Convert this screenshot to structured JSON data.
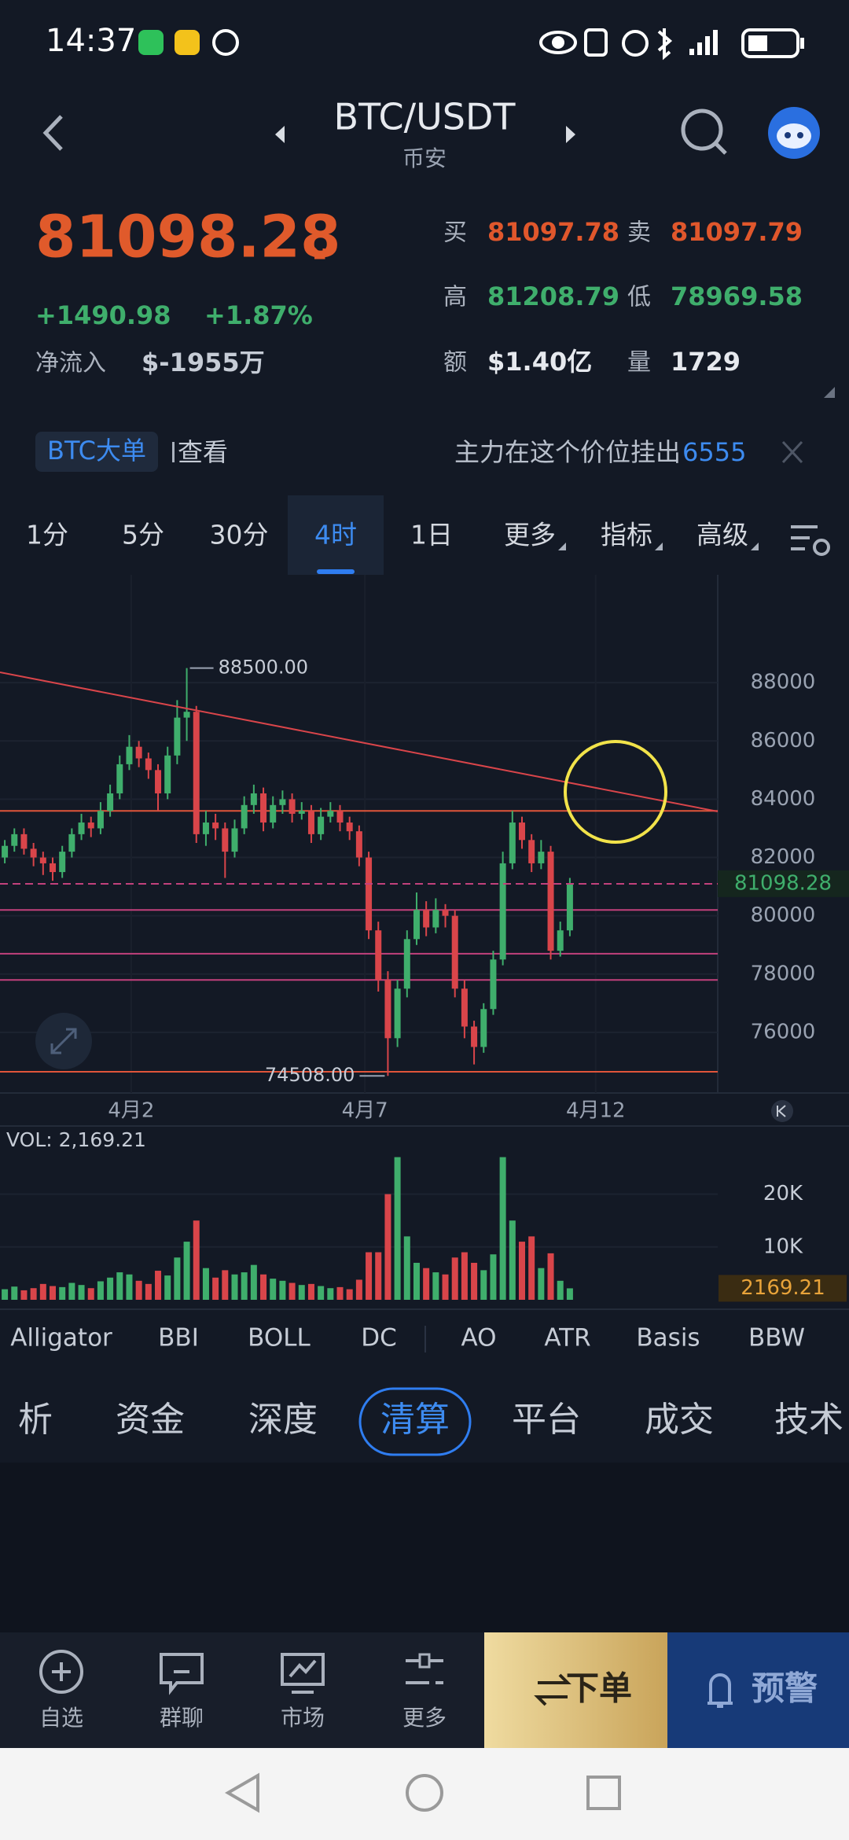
{
  "status_bar": {
    "time": "14:37"
  },
  "header": {
    "title": "BTC/USDT",
    "subtitle": "币安"
  },
  "ticker": {
    "price": "81098.28",
    "change": "+1490.98",
    "change_pct": "+1.87%",
    "net_inflow_label": "净流入",
    "net_inflow": "$-1955万",
    "stats": [
      {
        "label": "买",
        "value": "81097.78",
        "color": "#e0572c"
      },
      {
        "label": "卖",
        "value": "81097.79",
        "color": "#e0572c"
      },
      {
        "label": "高",
        "value": "81208.79",
        "color": "#3fae6c"
      },
      {
        "label": "低",
        "value": "78969.58",
        "color": "#3fae6c"
      },
      {
        "label": "额",
        "value": "$1.40亿",
        "color": "#e6e9ee"
      },
      {
        "label": "量",
        "value": "1729",
        "color": "#e6e9ee"
      }
    ]
  },
  "banner": {
    "tag": "BTC大单",
    "action": "查看",
    "text": "主力在这个价位挂出",
    "count": "6555"
  },
  "timeframes": [
    "1分",
    "5分",
    "30分",
    "4时",
    "1日",
    "更多",
    "指标",
    "高级"
  ],
  "active_timeframe": 3,
  "chart": {
    "type": "candlestick",
    "up_color": "#3fae6c",
    "down_color": "#d9454a",
    "ylim": [
      73920,
      91700
    ],
    "yticks": [
      76000,
      78000,
      80000,
      82000,
      84000,
      86000,
      88000
    ],
    "xticks": [
      {
        "value": 13.2,
        "label": "4月2"
      },
      {
        "value": 37.6,
        "label": "4月7"
      },
      {
        "value": 61.7,
        "label": "4月12"
      }
    ],
    "high_label": {
      "value": 88500,
      "label": "88500.00"
    },
    "low_label": {
      "value": 74508,
      "label": "74508.00"
    },
    "levels": [
      {
        "value": 83600,
        "color": "#e0553a"
      },
      {
        "value": 80200,
        "color": "#c2417c"
      },
      {
        "value": 78700,
        "color": "#c2417c"
      },
      {
        "value": 77800,
        "color": "#c2417c"
      },
      {
        "value": 74650,
        "color": "#e0553a"
      }
    ],
    "candles": [
      [
        82000,
        82600,
        81800,
        82400
      ],
      [
        82400,
        83000,
        82200,
        82800
      ],
      [
        82800,
        83000,
        82100,
        82300
      ],
      [
        82300,
        82500,
        81700,
        82000
      ],
      [
        82000,
        82200,
        81400,
        81800
      ],
      [
        81800,
        82000,
        81200,
        81500
      ],
      [
        81500,
        82400,
        81300,
        82200
      ],
      [
        82200,
        83000,
        82000,
        82800
      ],
      [
        82800,
        83500,
        82600,
        83200
      ],
      [
        83200,
        83400,
        82700,
        83000
      ],
      [
        83000,
        83900,
        82800,
        83600
      ],
      [
        83600,
        84500,
        83400,
        84200
      ],
      [
        84200,
        85500,
        84000,
        85200
      ],
      [
        85200,
        86200,
        85000,
        85800
      ],
      [
        85800,
        86000,
        85100,
        85400
      ],
      [
        85400,
        85600,
        84700,
        85000
      ],
      [
        85000,
        85200,
        83600,
        84200
      ],
      [
        84200,
        85800,
        84000,
        85500
      ],
      [
        85500,
        87400,
        85200,
        86800
      ],
      [
        86800,
        88500,
        86000,
        87000
      ],
      [
        87000,
        87200,
        82500,
        82800
      ],
      [
        82800,
        83600,
        82400,
        83200
      ],
      [
        83200,
        83500,
        82600,
        83000
      ],
      [
        83000,
        83200,
        81300,
        82200
      ],
      [
        82200,
        83300,
        82000,
        83000
      ],
      [
        83000,
        84100,
        82800,
        83800
      ],
      [
        83800,
        84500,
        83500,
        84200
      ],
      [
        84200,
        84400,
        82900,
        83200
      ],
      [
        83200,
        84100,
        83000,
        83800
      ],
      [
        83800,
        84300,
        83500,
        84000
      ],
      [
        84000,
        84200,
        83200,
        83500
      ],
      [
        83500,
        83900,
        83300,
        83600
      ],
      [
        83600,
        83800,
        82500,
        82800
      ],
      [
        82800,
        83700,
        82600,
        83400
      ],
      [
        83400,
        83900,
        83200,
        83600
      ],
      [
        83600,
        83800,
        82900,
        83200
      ],
      [
        83200,
        83400,
        82600,
        82900
      ],
      [
        82900,
        83100,
        81700,
        82000
      ],
      [
        82000,
        82200,
        79200,
        79500
      ],
      [
        79500,
        79800,
        77400,
        77800
      ],
      [
        77800,
        78100,
        74508,
        75800
      ],
      [
        75800,
        77800,
        75500,
        77500
      ],
      [
        77500,
        79500,
        77200,
        79200
      ],
      [
        79200,
        80800,
        79000,
        80200
      ],
      [
        80200,
        80500,
        79300,
        79600
      ],
      [
        79600,
        80600,
        79400,
        80200
      ],
      [
        80200,
        80400,
        79600,
        80000
      ],
      [
        80000,
        80200,
        77200,
        77500
      ],
      [
        77500,
        77800,
        75800,
        76200
      ],
      [
        76200,
        76400,
        74900,
        75500
      ],
      [
        75500,
        77000,
        75300,
        76800
      ],
      [
        76800,
        78800,
        76600,
        78500
      ],
      [
        78500,
        82200,
        78300,
        81800
      ],
      [
        81800,
        83600,
        81600,
        83200
      ],
      [
        83200,
        83400,
        82300,
        82600
      ],
      [
        82600,
        82800,
        81500,
        81800
      ],
      [
        81800,
        82600,
        81600,
        82200
      ],
      [
        82200,
        82400,
        78500,
        78800
      ],
      [
        78800,
        79800,
        78600,
        79500
      ],
      [
        79500,
        81300,
        79300,
        81098.28
      ]
    ]
  },
  "volume": {
    "label": "VOL: 2,169.21",
    "ylim": [
      0,
      31700
    ],
    "yticks": [
      {
        "value": 10000,
        "label": "10K"
      },
      {
        "value": 20000,
        "label": "20K"
      }
    ],
    "values": [
      2000,
      2500,
      1800,
      2200,
      3000,
      2600,
      2400,
      3200,
      2800,
      2200,
      3500,
      4200,
      5200,
      4800,
      3600,
      3000,
      5500,
      4600,
      8000,
      11000,
      15000,
      6000,
      4200,
      5600,
      4800,
      5200,
      6600,
      4800,
      4000,
      3600,
      3200,
      2800,
      3000,
      2600,
      2200,
      2400,
      2000,
      3800,
      9000,
      9000,
      20000,
      27000,
      12000,
      7000,
      6000,
      5200,
      4800,
      8000,
      9000,
      7000,
      5600,
      8600,
      27000,
      15000,
      11000,
      12000,
      6000,
      8800,
      3600,
      2169.21
    ]
  },
  "indicators": [
    "Alligator",
    "BBI",
    "BOLL",
    "DC",
    "AO",
    "ATR",
    "Basis",
    "BBW"
  ],
  "tabs": [
    "析",
    "资金",
    "深度",
    "清算",
    "平台",
    "成交",
    "技术"
  ],
  "active_tab": 3,
  "nav": [
    "自选",
    "群聊",
    "市场",
    "更多"
  ],
  "buttons": {
    "order": "下单",
    "alert": "预警"
  }
}
